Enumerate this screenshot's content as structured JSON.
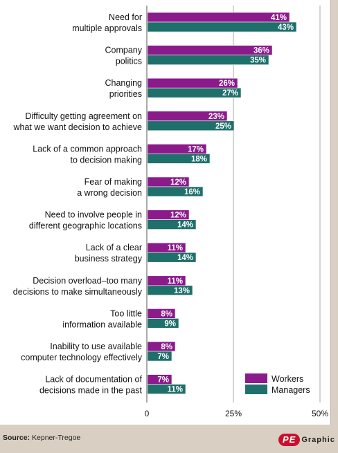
{
  "chart_data": {
    "type": "bar",
    "orientation": "horizontal",
    "categories": [
      [
        "Need for",
        "multiple approvals"
      ],
      [
        "Company",
        "politics"
      ],
      [
        "Changing",
        "priorities"
      ],
      [
        "Difficulty getting agreement on",
        "what we want decision to achieve"
      ],
      [
        "Lack of a common approach",
        "to decision making"
      ],
      [
        "Fear of making",
        "a wrong decision"
      ],
      [
        "Need to involve people in",
        "different geographic locations"
      ],
      [
        "Lack of a clear",
        "business strategy"
      ],
      [
        "Decision overload–too many",
        "decisions to make simultaneously"
      ],
      [
        "Too little",
        "information available"
      ],
      [
        "Inability to use available",
        "computer technology effectively"
      ],
      [
        "Lack of documentation of",
        "decisions made in the past"
      ]
    ],
    "series": [
      {
        "name": "Workers",
        "color": "#8b1a8b",
        "values": [
          41,
          36,
          26,
          23,
          17,
          12,
          12,
          11,
          11,
          8,
          8,
          7
        ]
      },
      {
        "name": "Managers",
        "color": "#1f6f6a",
        "values": [
          43,
          35,
          27,
          25,
          18,
          16,
          14,
          14,
          13,
          9,
          7,
          11
        ]
      }
    ],
    "value_suffix": "%",
    "xlim": [
      0,
      50
    ],
    "xticks": [
      "0",
      "25%",
      "50%"
    ],
    "xtick_values": [
      0,
      25,
      50
    ],
    "grid": true,
    "legend_position": "bottom-right"
  },
  "footer": {
    "source_label": "Source:",
    "source_value": "Kepner-Tregoe",
    "logo_mark": "PE",
    "logo_text": "Graphic"
  }
}
